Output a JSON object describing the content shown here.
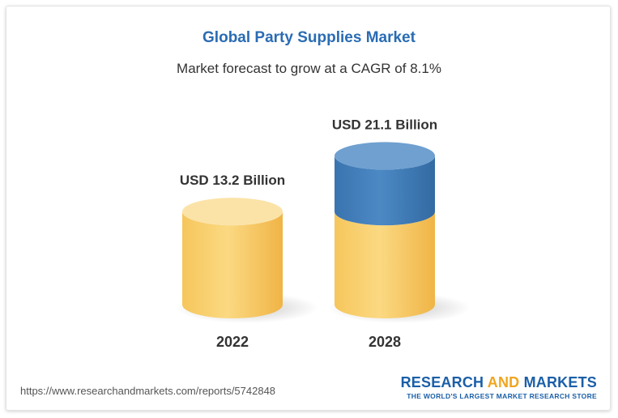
{
  "header": {
    "title": "Global Party Supplies Market",
    "subtitle": "Market forecast to grow at a CAGR of 8.1%"
  },
  "chart_data": {
    "type": "bar",
    "categories": [
      "2022",
      "2028"
    ],
    "values": [
      13.2,
      21.1
    ],
    "data_labels": [
      "USD 13.2 Billion",
      "USD 21.1 Billion"
    ],
    "base_value": 13.2,
    "title": "Global Party Supplies Market",
    "subtitle": "Market forecast to grow at a CAGR of 8.1%",
    "colors": {
      "base": "#f5c55f",
      "base_top": "#fbe3a8",
      "growth": "#3d7ab8",
      "growth_top": "#6fa0d0"
    },
    "grid": false
  },
  "footer": {
    "url": "https://www.researchandmarkets.com/reports/5742848",
    "brand_part1": "RESEARCH",
    "brand_part2": "AND",
    "brand_part3": "MARKETS",
    "tagline": "THE WORLD'S LARGEST MARKET RESEARCH STORE"
  },
  "colors": {
    "title": "#2a6cb3",
    "brand_blue": "#1b5fa8",
    "brand_orange": "#f0a51e"
  }
}
